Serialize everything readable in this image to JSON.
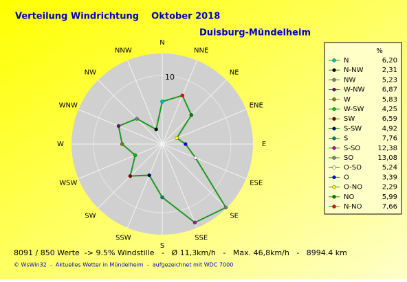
{
  "chart_data": {
    "type": "radar",
    "title": "Verteilung Windrichtung    Oktober 2018",
    "subtitle": "Duisburg-Mündelheim",
    "axis_labels": [
      "N",
      "NNE",
      "NE",
      "ENE",
      "E",
      "ESE",
      "SE",
      "SSE",
      "S",
      "SSW",
      "SW",
      "WSW",
      "W",
      "WNW",
      "NW",
      "NNW"
    ],
    "legend_title": "%",
    "categories": [
      "N",
      "N-NW",
      "NW",
      "W-NW",
      "W",
      "W-SW",
      "SW",
      "S-SW",
      "S",
      "S-SO",
      "SO",
      "O-SO",
      "O",
      "O-NO",
      "NO",
      "N-NO"
    ],
    "values": [
      6.2,
      2.31,
      5.23,
      6.87,
      5.83,
      4.25,
      6.59,
      4.92,
      7.76,
      12.38,
      13.08,
      5.24,
      3.39,
      2.29,
      5.99,
      7.66
    ],
    "value_labels": [
      "6,20",
      "2,31",
      "5,23",
      "6,87",
      "5,83",
      "4,25",
      "6,59",
      "4,92",
      "7,76",
      "12,38",
      "13,08",
      "5,24",
      "3,39",
      "2,29",
      "5,99",
      "7,66"
    ],
    "colors": [
      "#00c0c0",
      "#000000",
      "#808080",
      "#800080",
      "#808000",
      "#00c000",
      "#800000",
      "#000080",
      "#008080",
      "#c000c0",
      "#808080",
      "#ffffff",
      "#0000ff",
      "#ffff00",
      "#008000",
      "#ff0000"
    ],
    "line_color": "#1a9a1a",
    "rlim": [
      0,
      13.2
    ],
    "rticks": [
      10
    ],
    "footer": "8091 / 850 Werte  -> 9.5% Windstille   -   Ø 11,3km/h   -   Max. 46,8km/h   -   8994.4 km",
    "credit": "© WsWin32  -  Aktuelles Wetter in Mündelheim  -  aufgezeichnet mit WDC 7000"
  }
}
